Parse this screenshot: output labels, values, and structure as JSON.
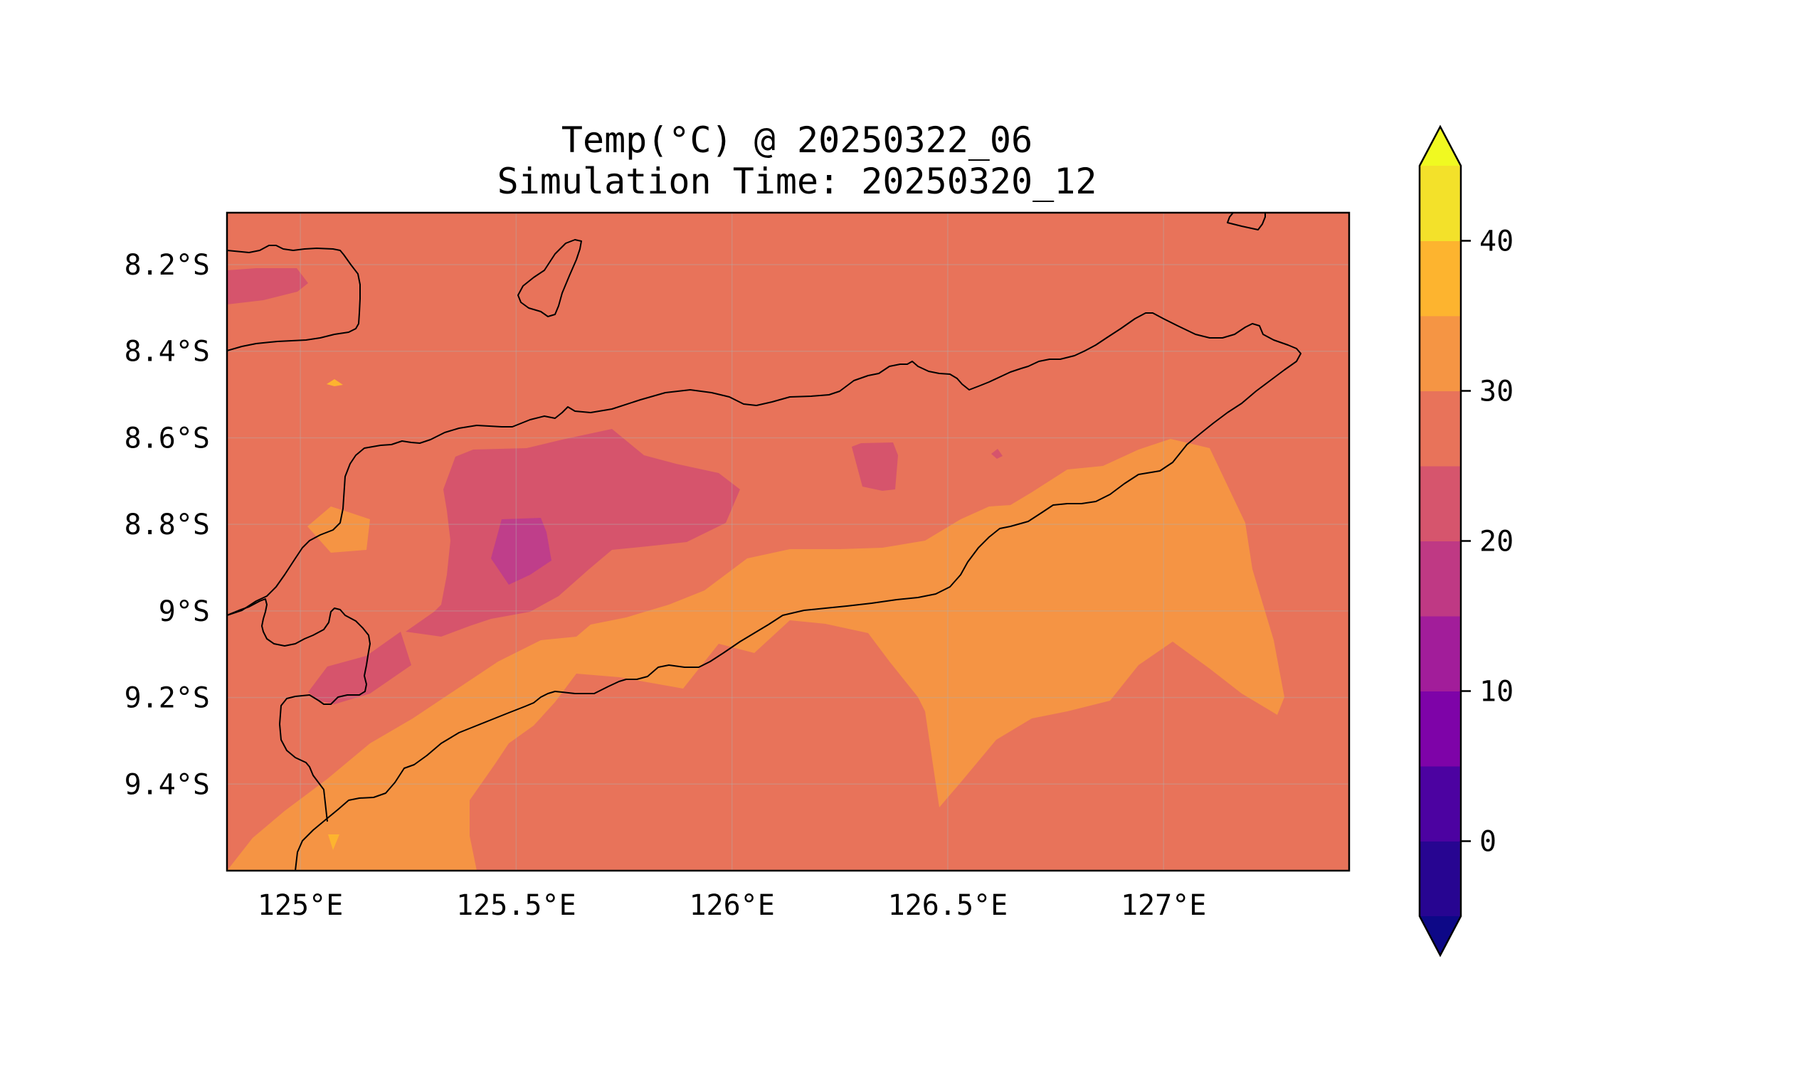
{
  "title_line1": "Temp(°C) @ 20250322_06",
  "title_line2": "Simulation Time: 20250320_12",
  "map": {
    "lon_range": [
      124.83,
      127.43
    ],
    "lat_range": [
      -9.6,
      -8.08
    ],
    "x_ticks": [
      {
        "value": 125.0,
        "label": "125°E"
      },
      {
        "value": 125.5,
        "label": "125.5°E"
      },
      {
        "value": 126.0,
        "label": "126°E"
      },
      {
        "value": 126.5,
        "label": "126.5°E"
      },
      {
        "value": 127.0,
        "label": "127°E"
      }
    ],
    "y_ticks": [
      {
        "value": -8.2,
        "label": "8.2°S"
      },
      {
        "value": -8.4,
        "label": "8.4°S"
      },
      {
        "value": -8.6,
        "label": "8.6°S"
      },
      {
        "value": -8.8,
        "label": "8.8°S"
      },
      {
        "value": -9.0,
        "label": "9°S"
      },
      {
        "value": -9.2,
        "label": "9.2°S"
      },
      {
        "value": -9.4,
        "label": "9.4°S"
      }
    ],
    "background_level_color": "#e8735a",
    "contour_fill_colors": {
      "20-25": "#d6546c",
      "15-20": "#bf3e8a",
      "30-35": "#f59444",
      "35-40": "#fdb42f"
    },
    "grid": true
  },
  "colorbar": {
    "levels": [
      -5,
      0,
      5,
      10,
      15,
      20,
      25,
      30,
      35,
      40,
      45
    ],
    "colors": [
      "#270591",
      "#4c02a1",
      "#7e03a8",
      "#a21d9a",
      "#bf3984",
      "#d6556d",
      "#e8735a",
      "#f59544",
      "#fdb42f",
      "#f3e12a"
    ],
    "under_color": "#0d0887",
    "over_color": "#f0f921",
    "tick_labels": [
      {
        "value": 0,
        "label": "0"
      },
      {
        "value": 10,
        "label": "10"
      },
      {
        "value": 20,
        "label": "20"
      },
      {
        "value": 30,
        "label": "30"
      },
      {
        "value": 40,
        "label": "40"
      }
    ]
  }
}
